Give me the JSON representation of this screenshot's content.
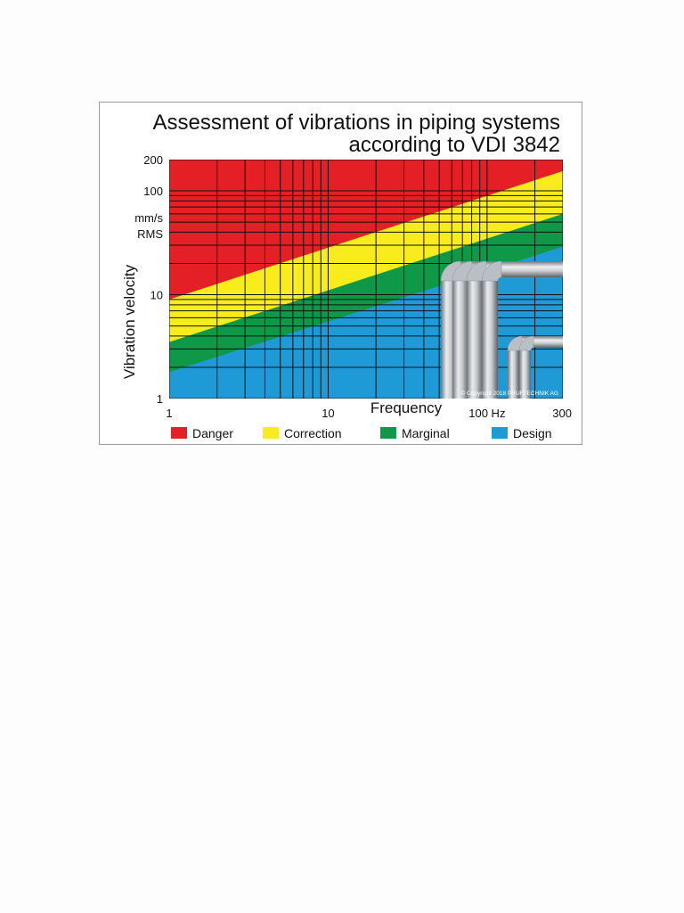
{
  "chart_data": {
    "type": "area",
    "title_lines": [
      "Assessment of vibrations in piping systems",
      "according to VDI 3842"
    ],
    "xlabel": "Frequency",
    "ylabel": "Vibration velocity",
    "y_unit_lines": [
      "mm/s",
      "RMS"
    ],
    "x_scale": "log",
    "y_scale": "log",
    "xlim": [
      1,
      300
    ],
    "ylim": [
      1,
      200
    ],
    "x_ticks": [
      {
        "value": 1,
        "label": "1"
      },
      {
        "value": 10,
        "label": "10"
      },
      {
        "value": 100,
        "label": "100 Hz"
      },
      {
        "value": 300,
        "label": "300"
      }
    ],
    "y_ticks": [
      {
        "value": 1,
        "label": "1"
      },
      {
        "value": 10,
        "label": "10"
      },
      {
        "value": 100,
        "label": "100"
      },
      {
        "value": 200,
        "label": "200"
      }
    ],
    "x_grid": [
      1,
      2,
      3,
      4,
      5,
      6,
      7,
      8,
      9,
      10,
      20,
      30,
      40,
      50,
      60,
      70,
      80,
      90,
      100,
      200,
      300
    ],
    "y_grid": [
      1,
      2,
      3,
      4,
      5,
      6,
      7,
      8,
      9,
      10,
      20,
      30,
      40,
      50,
      60,
      70,
      80,
      90,
      100,
      200
    ],
    "grid": true,
    "boundaries": [
      {
        "name": "Danger / Correction",
        "x": [
          1,
          300
        ],
        "y": [
          9,
          155
        ]
      },
      {
        "name": "Correction / Marginal",
        "x": [
          1,
          300
        ],
        "y": [
          3.5,
          60
        ]
      },
      {
        "name": "Marginal / Design",
        "x": [
          1,
          300
        ],
        "y": [
          1.8,
          29
        ]
      }
    ],
    "legend_position": "bottom",
    "legend": [
      {
        "label": "Danger",
        "color": "#e41f26"
      },
      {
        "label": "Correction",
        "color": "#f8ec1c"
      },
      {
        "label": "Marginal",
        "color": "#0f9848"
      },
      {
        "label": "Design",
        "color": "#1e9bd7"
      }
    ]
  },
  "copyright": "© Copyright 2018 PRUFTECHNIK AG"
}
